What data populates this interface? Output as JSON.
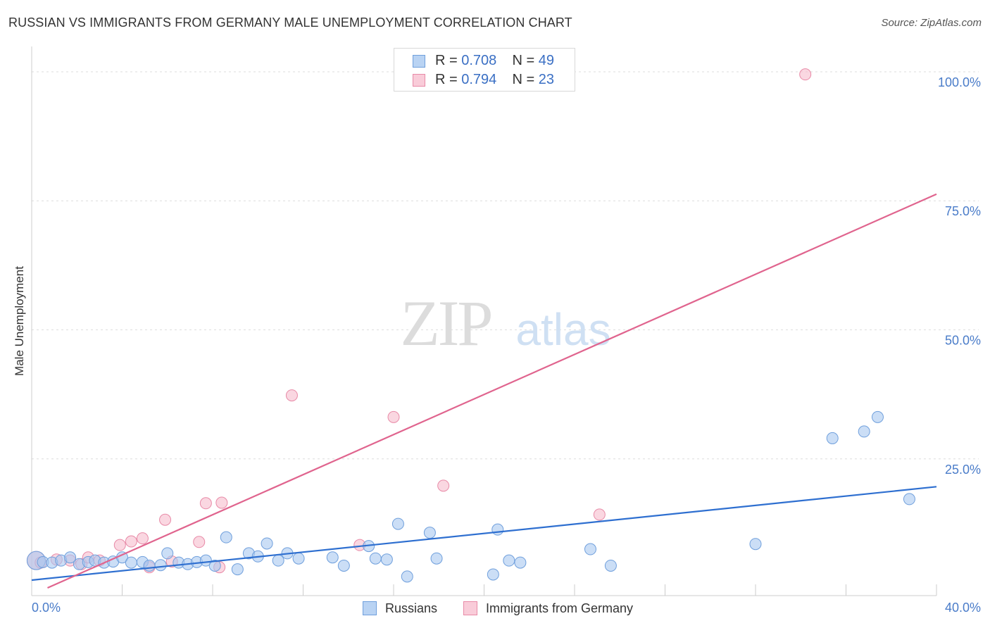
{
  "title": "RUSSIAN VS IMMIGRANTS FROM GERMANY MALE UNEMPLOYMENT CORRELATION CHART",
  "source": "Source: ZipAtlas.com",
  "watermark": {
    "zip": "ZIP",
    "atlas": "atlas"
  },
  "stats": {
    "r_label": "R =",
    "n_label": "N =",
    "rows": [
      {
        "r": "0.708",
        "n": "49"
      },
      {
        "r": "0.794",
        "n": "23"
      }
    ]
  },
  "legend": {
    "items": [
      "Russians",
      "Immigrants from Germany"
    ]
  },
  "colors": {
    "blue_fill": "#a9c8f0",
    "blue_stroke": "#6f9fdc",
    "blue_line": "#2e6fd0",
    "pink_fill": "#f6bccd",
    "pink_stroke": "#e88aa7",
    "pink_line": "#e0648e",
    "tick_label": "#4a7cc9",
    "grid": "#dddddd"
  },
  "chart_data": {
    "type": "scatter",
    "title": "RUSSIAN VS IMMIGRANTS FROM GERMANY MALE UNEMPLOYMENT CORRELATION CHART",
    "xlabel": "",
    "ylabel": "Male Unemployment",
    "xlim": [
      0,
      40
    ],
    "ylim": [
      -1.5,
      103
    ],
    "x_tick_labels": [
      "0.0%",
      "40.0%"
    ],
    "y_ticks": [
      25,
      50,
      75,
      100
    ],
    "y_tick_labels": [
      "25.0%",
      "50.0%",
      "75.0%",
      "100.0%"
    ],
    "grid": true,
    "series": [
      {
        "name": "Russians",
        "r": 0.708,
        "n": 49,
        "points": [
          [
            0.2,
            5.3
          ],
          [
            0.5,
            5.0
          ],
          [
            0.9,
            4.9
          ],
          [
            1.3,
            5.3
          ],
          [
            1.7,
            5.9
          ],
          [
            2.1,
            4.6
          ],
          [
            2.5,
            5.0
          ],
          [
            2.8,
            5.3
          ],
          [
            3.2,
            4.9
          ],
          [
            3.6,
            5.1
          ],
          [
            4.0,
            5.9
          ],
          [
            4.4,
            4.9
          ],
          [
            4.9,
            5.0
          ],
          [
            5.2,
            4.3
          ],
          [
            5.7,
            4.4
          ],
          [
            6.0,
            6.7
          ],
          [
            6.5,
            4.9
          ],
          [
            6.9,
            4.6
          ],
          [
            7.3,
            5.0
          ],
          [
            7.7,
            5.3
          ],
          [
            8.1,
            4.3
          ],
          [
            8.6,
            9.8
          ],
          [
            9.1,
            3.6
          ],
          [
            9.6,
            6.7
          ],
          [
            10.0,
            6.1
          ],
          [
            10.4,
            8.6
          ],
          [
            10.9,
            5.3
          ],
          [
            11.3,
            6.7
          ],
          [
            11.8,
            5.7
          ],
          [
            13.3,
            5.9
          ],
          [
            13.8,
            4.3
          ],
          [
            14.9,
            8.1
          ],
          [
            15.2,
            5.7
          ],
          [
            15.7,
            5.5
          ],
          [
            16.2,
            12.4
          ],
          [
            16.6,
            2.2
          ],
          [
            17.6,
            10.7
          ],
          [
            17.9,
            5.7
          ],
          [
            20.4,
            2.6
          ],
          [
            20.6,
            11.3
          ],
          [
            21.1,
            5.3
          ],
          [
            21.6,
            4.9
          ],
          [
            24.7,
            7.5
          ],
          [
            25.6,
            4.3
          ],
          [
            32.0,
            8.5
          ],
          [
            35.4,
            29.0
          ],
          [
            36.8,
            30.3
          ],
          [
            37.4,
            33.1
          ],
          [
            38.8,
            17.2
          ]
        ],
        "trend": [
          [
            0,
            1.5
          ],
          [
            40,
            19.6
          ]
        ]
      },
      {
        "name": "Immigrants from Germany",
        "r": 0.794,
        "n": 23,
        "points": [
          [
            0.2,
            5.3
          ],
          [
            0.4,
            4.9
          ],
          [
            1.1,
            5.5
          ],
          [
            1.7,
            5.3
          ],
          [
            2.2,
            4.6
          ],
          [
            2.5,
            5.9
          ],
          [
            3.0,
            5.3
          ],
          [
            3.9,
            8.3
          ],
          [
            4.4,
            9.0
          ],
          [
            4.9,
            9.6
          ],
          [
            5.2,
            4.0
          ],
          [
            5.9,
            13.2
          ],
          [
            6.2,
            5.1
          ],
          [
            7.4,
            8.9
          ],
          [
            7.7,
            16.4
          ],
          [
            8.3,
            4.0
          ],
          [
            8.4,
            16.5
          ],
          [
            11.5,
            37.3
          ],
          [
            14.5,
            8.3
          ],
          [
            16.0,
            33.1
          ],
          [
            18.2,
            19.8
          ],
          [
            25.1,
            14.2
          ],
          [
            34.2,
            99.5
          ]
        ],
        "trend": [
          [
            0.7,
            0
          ],
          [
            40,
            76.3
          ]
        ]
      }
    ]
  }
}
